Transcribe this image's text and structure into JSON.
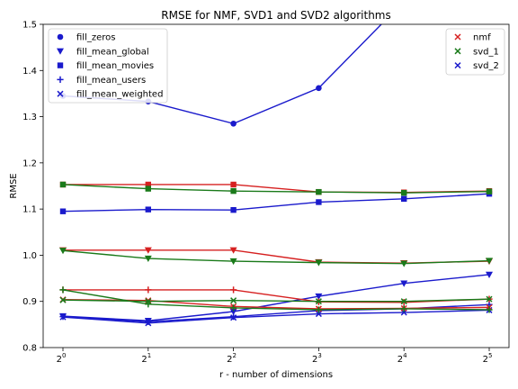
{
  "chart_data": {
    "type": "line",
    "title": "RMSE for NMF, SVD1 and SVD2 algorithms",
    "xlabel": "r - number of dimensions",
    "ylabel": "RMSE",
    "xscale": "log2",
    "x": [
      1,
      2,
      4,
      8,
      16,
      32
    ],
    "x_tick_labels": [
      {
        "base": "2",
        "exp": "0"
      },
      {
        "base": "2",
        "exp": "1"
      },
      {
        "base": "2",
        "exp": "2"
      },
      {
        "base": "2",
        "exp": "3"
      },
      {
        "base": "2",
        "exp": "4"
      },
      {
        "base": "2",
        "exp": "5"
      }
    ],
    "ylim": [
      0.8,
      1.5
    ],
    "y_ticks": [
      "0.8",
      "0.9",
      "1.0",
      "1.1",
      "1.2",
      "1.3",
      "1.4",
      "1.5"
    ],
    "grid": false,
    "legends": {
      "markers": {
        "placement": "top-left",
        "entries": [
          {
            "label": "fill_zeros",
            "marker": "circle"
          },
          {
            "label": "fill_mean_global",
            "marker": "triangle-down"
          },
          {
            "label": "fill_mean_movies",
            "marker": "square"
          },
          {
            "label": "fill_mean_users",
            "marker": "plus"
          },
          {
            "label": "fill_mean_weighted",
            "marker": "x"
          }
        ]
      },
      "algorithms": {
        "placement": "top-right",
        "entries": [
          {
            "label": "nmf",
            "color": "#d62020"
          },
          {
            "label": "svd_1",
            "color": "#1a7a1a"
          },
          {
            "label": "svd_2",
            "color": "#1a1acc"
          }
        ]
      }
    },
    "series": [
      {
        "algo": "svd_2",
        "fill": "fill_zeros",
        "color": "#1a1acc",
        "marker": "circle",
        "values": [
          1.345,
          1.333,
          1.285,
          1.362,
          1.55,
          1.55
        ]
      },
      {
        "algo": "svd_2",
        "fill": "fill_mean_movies",
        "color": "#1a1acc",
        "marker": "square",
        "values": [
          1.095,
          1.099,
          1.098,
          1.115,
          1.122,
          1.133
        ]
      },
      {
        "algo": "svd_2",
        "fill": "fill_mean_global",
        "color": "#1a1acc",
        "marker": "triangle-down",
        "values": [
          0.868,
          0.858,
          0.878,
          0.911,
          0.939,
          0.958
        ]
      },
      {
        "algo": "svd_2",
        "fill": "fill_mean_users",
        "color": "#1a1acc",
        "marker": "plus",
        "values": [
          0.867,
          0.856,
          0.867,
          0.88,
          0.884,
          0.893
        ]
      },
      {
        "algo": "svd_2",
        "fill": "fill_mean_weighted",
        "color": "#1a1acc",
        "marker": "x",
        "values": [
          0.866,
          0.853,
          0.865,
          0.873,
          0.876,
          0.881
        ]
      },
      {
        "algo": "nmf",
        "fill": "fill_mean_movies",
        "color": "#d62020",
        "marker": "square",
        "values": [
          1.153,
          1.153,
          1.153,
          1.137,
          1.136,
          1.139
        ]
      },
      {
        "algo": "nmf",
        "fill": "fill_mean_global",
        "color": "#d62020",
        "marker": "triangle-down",
        "values": [
          1.011,
          1.011,
          1.011,
          0.985,
          0.983,
          0.987
        ]
      },
      {
        "algo": "nmf",
        "fill": "fill_mean_users",
        "color": "#d62020",
        "marker": "plus",
        "values": [
          0.925,
          0.925,
          0.925,
          0.899,
          0.898,
          0.905
        ]
      },
      {
        "algo": "nmf",
        "fill": "fill_mean_weighted",
        "color": "#d62020",
        "marker": "x",
        "values": [
          0.904,
          0.902,
          0.889,
          0.884,
          0.885,
          0.887
        ]
      },
      {
        "algo": "svd_1",
        "fill": "fill_mean_movies",
        "color": "#1a7a1a",
        "marker": "square",
        "values": [
          1.153,
          1.144,
          1.139,
          1.137,
          1.135,
          1.138
        ]
      },
      {
        "algo": "svd_1",
        "fill": "fill_mean_global",
        "color": "#1a7a1a",
        "marker": "triangle-down",
        "values": [
          1.01,
          0.993,
          0.987,
          0.984,
          0.982,
          0.988
        ]
      },
      {
        "algo": "svd_1",
        "fill": "fill_mean_users",
        "color": "#1a7a1a",
        "marker": "plus",
        "values": [
          0.925,
          0.894,
          0.886,
          0.882,
          0.884,
          0.882
        ]
      },
      {
        "algo": "svd_1",
        "fill": "fill_mean_weighted",
        "color": "#1a7a1a",
        "marker": "x",
        "values": [
          0.903,
          0.9,
          0.902,
          0.9,
          0.9,
          0.905
        ]
      }
    ]
  }
}
